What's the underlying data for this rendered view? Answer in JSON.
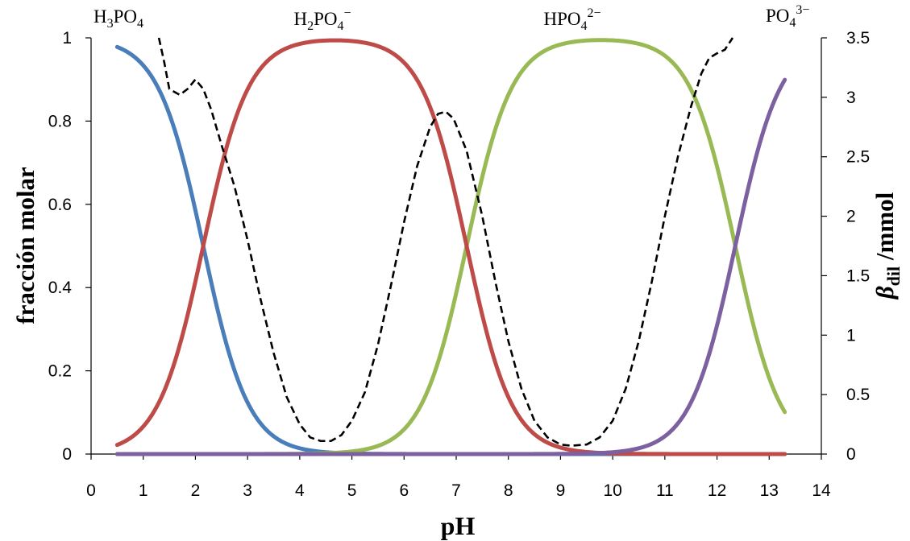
{
  "chart_data": {
    "type": "line",
    "xlabel": "pH",
    "ylabel_left": "fracción molar",
    "ylabel_right": {
      "symbol": "β",
      "subscript": "dil",
      "unit": " /mmol"
    },
    "xlim": [
      0,
      14
    ],
    "ylim_left": [
      0,
      1
    ],
    "ylim_right": [
      0,
      3.5
    ],
    "x_ticks": [
      "0",
      "1",
      "2",
      "3",
      "4",
      "5",
      "6",
      "7",
      "8",
      "9",
      "10",
      "11",
      "12",
      "13",
      "14"
    ],
    "y_left_ticks": [
      "0",
      "0.2",
      "0.4",
      "0.6",
      "0.8",
      "1"
    ],
    "y_right_ticks": [
      "0",
      "0.5",
      "1",
      "1.5",
      "2",
      "2.5",
      "3",
      "3.5"
    ],
    "grid": false,
    "pKa": [
      2.15,
      7.2,
      12.35
    ],
    "pH_range": [
      0.5,
      13.3
    ],
    "species_labels": [
      {
        "base": "H",
        "sub1": "3",
        "mid": "PO",
        "sub2": "4",
        "sup": ""
      },
      {
        "base": "H",
        "sub1": "2",
        "mid": "PO",
        "sub2": "4",
        "sup": "−"
      },
      {
        "base": "",
        "sub1": "",
        "mid": "HPO",
        "sub2": "4",
        "sup": "2−"
      },
      {
        "base": "",
        "sub1": "",
        "mid": "PO",
        "sub2": "4",
        "sup": "3−"
      }
    ],
    "series": [
      {
        "name": "H3PO4",
        "color": "#4a7ebb",
        "axis": "left"
      },
      {
        "name": "H2PO4−",
        "color": "#be4b48",
        "axis": "left"
      },
      {
        "name": "HPO4 2−",
        "color": "#98b954",
        "axis": "left"
      },
      {
        "name": "PO4 3−",
        "color": "#7d60a0",
        "axis": "left"
      },
      {
        "name": "βdil",
        "color": "#000000",
        "axis": "right",
        "dashed": true,
        "points": [
          [
            1.3,
            3.5
          ],
          [
            1.4,
            3.3
          ],
          [
            1.5,
            3.07
          ],
          [
            1.7,
            3.02
          ],
          [
            1.85,
            3.07
          ],
          [
            2.0,
            3.15
          ],
          [
            2.15,
            3.07
          ],
          [
            2.3,
            2.9
          ],
          [
            2.5,
            2.6
          ],
          [
            2.75,
            2.25
          ],
          [
            3.0,
            1.8
          ],
          [
            3.25,
            1.3
          ],
          [
            3.5,
            0.85
          ],
          [
            3.75,
            0.48
          ],
          [
            4.0,
            0.25
          ],
          [
            4.2,
            0.14
          ],
          [
            4.4,
            0.11
          ],
          [
            4.6,
            0.11
          ],
          [
            4.8,
            0.16
          ],
          [
            5.0,
            0.28
          ],
          [
            5.25,
            0.52
          ],
          [
            5.5,
            0.92
          ],
          [
            5.75,
            1.42
          ],
          [
            6.0,
            1.95
          ],
          [
            6.25,
            2.42
          ],
          [
            6.5,
            2.75
          ],
          [
            6.65,
            2.86
          ],
          [
            6.8,
            2.88
          ],
          [
            6.95,
            2.82
          ],
          [
            7.2,
            2.55
          ],
          [
            7.5,
            2.0
          ],
          [
            7.75,
            1.45
          ],
          [
            8.0,
            0.95
          ],
          [
            8.25,
            0.55
          ],
          [
            8.5,
            0.28
          ],
          [
            8.75,
            0.14
          ],
          [
            9.0,
            0.08
          ],
          [
            9.2,
            0.07
          ],
          [
            9.5,
            0.08
          ],
          [
            9.75,
            0.14
          ],
          [
            10.0,
            0.28
          ],
          [
            10.25,
            0.55
          ],
          [
            10.5,
            0.95
          ],
          [
            10.75,
            1.45
          ],
          [
            11.0,
            2.0
          ],
          [
            11.25,
            2.5
          ],
          [
            11.5,
            2.92
          ],
          [
            11.7,
            3.2
          ],
          [
            11.85,
            3.33
          ],
          [
            12.0,
            3.37
          ],
          [
            12.15,
            3.4
          ],
          [
            12.3,
            3.5
          ]
        ]
      }
    ]
  }
}
